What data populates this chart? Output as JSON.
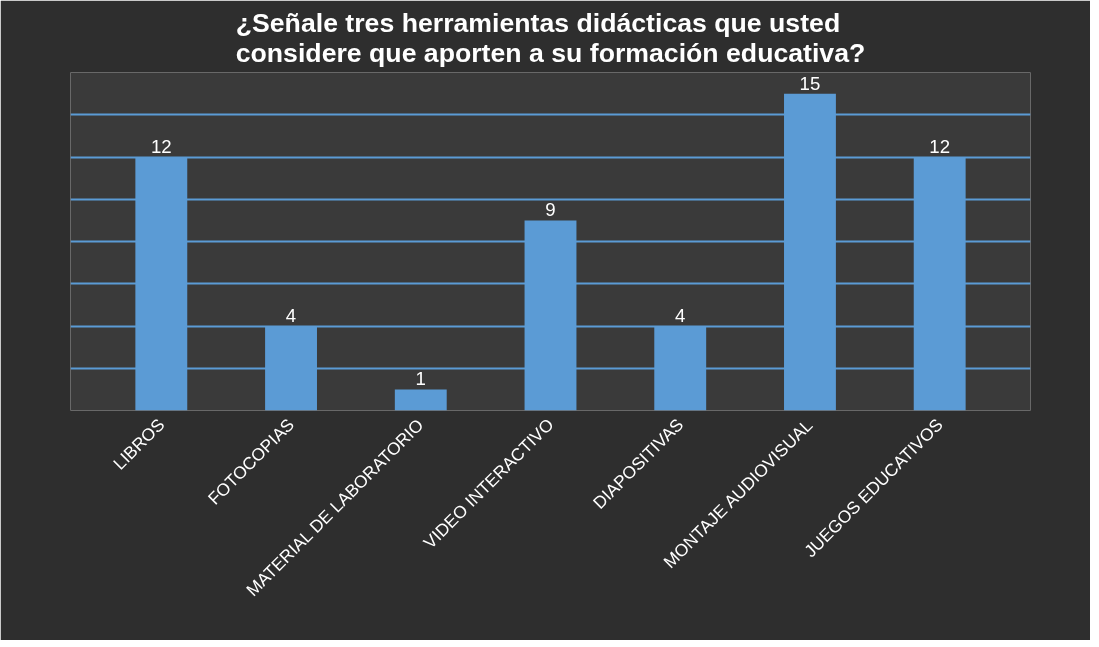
{
  "chart_data": {
    "type": "bar",
    "title": "¿Señale tres herramientas didácticas que usted\nconsidere que aporten a su formación educativa?",
    "categories": [
      "LIBROS",
      "FOTOCOPIAS",
      "MATERIAL DE LABORATORIO",
      "VIDEO INTERACTIVO",
      "DIAPOSITIVAS",
      "MONTAJE AUDIOVISUAL",
      "JUEGOS EDUCATIVOS"
    ],
    "values": [
      12,
      4,
      1,
      9,
      4,
      15,
      12
    ],
    "color": "#5b9bd5",
    "data_labels": true,
    "grid": "y",
    "ylim": [
      0,
      16
    ],
    "yticks": [
      {
        "value": 0,
        "label": null
      },
      {
        "value": 2,
        "label": null
      },
      {
        "value": 4,
        "label": null
      },
      {
        "value": 6,
        "label": null
      },
      {
        "value": 8,
        "label": null
      },
      {
        "value": 10,
        "label": null
      },
      {
        "value": 12,
        "label": null
      },
      {
        "value": 14,
        "label": null
      },
      {
        "value": 16,
        "label": null
      }
    ],
    "tick_labels": "x"
  }
}
